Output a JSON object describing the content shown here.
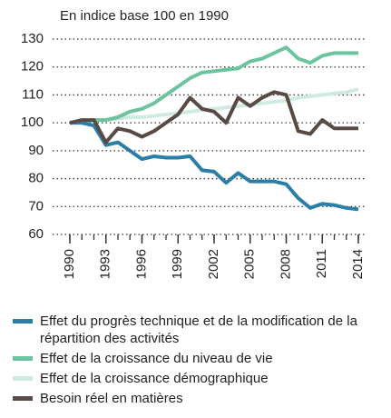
{
  "chart_data": {
    "type": "line",
    "y_label": "En indice base 100 en 1990",
    "x": [
      1990,
      1991,
      1992,
      1993,
      1994,
      1995,
      1996,
      1997,
      1998,
      1999,
      2000,
      2001,
      2002,
      2003,
      2004,
      2005,
      2006,
      2007,
      2008,
      2009,
      2010,
      2011,
      2012,
      2013,
      2014
    ],
    "xlim": [
      1990,
      2014
    ],
    "xticks": [
      1990,
      1993,
      1996,
      1999,
      2002,
      2005,
      2008,
      2011,
      2014
    ],
    "ylim": [
      60,
      130
    ],
    "yticks": [
      60,
      70,
      80,
      90,
      100,
      110,
      120,
      130
    ],
    "grid": true,
    "legend": "bottom",
    "series": [
      {
        "name": "Effet du progrès technique et de la modification de la répartition des activités",
        "color": "#2b7ea6",
        "values": [
          100,
          100,
          99,
          92,
          93,
          90,
          87,
          88,
          87.5,
          87.5,
          88,
          83,
          82.5,
          78.5,
          82,
          79,
          79,
          79,
          78,
          73,
          69.5,
          71,
          70.5,
          69.5,
          69
        ]
      },
      {
        "name": "Effet de la croissance du niveau de vie",
        "color": "#6cc49f",
        "values": [
          100,
          100,
          101,
          101,
          102,
          104,
          105,
          107,
          110,
          113,
          116,
          118,
          118.5,
          119,
          119.5,
          122,
          123,
          125,
          127,
          123,
          121.5,
          124,
          125,
          125,
          125
        ]
      },
      {
        "name": "Effet de la croissance démographique",
        "color": "#cfeadf",
        "values": [
          100,
          100.5,
          101,
          101,
          101.5,
          102,
          102,
          102.5,
          103,
          103.5,
          104,
          104.5,
          105,
          105.5,
          106,
          106.5,
          107,
          107.5,
          108,
          109,
          109.5,
          110,
          110.5,
          111,
          112
        ]
      },
      {
        "name": "Besoin réel en matières",
        "color": "#594a45",
        "values": [
          100,
          101,
          101,
          93,
          98,
          97,
          95,
          97,
          100,
          103,
          109,
          105,
          104,
          100,
          109,
          106,
          109,
          111,
          110,
          97,
          96,
          101,
          98,
          98,
          98
        ]
      }
    ]
  }
}
